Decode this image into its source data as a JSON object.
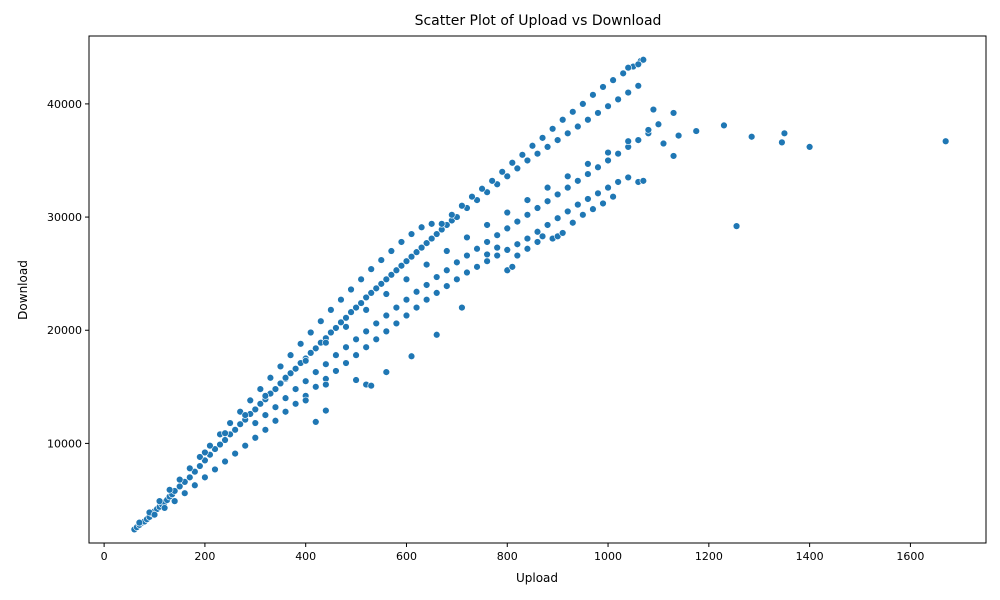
{
  "chart_data": {
    "type": "scatter",
    "title": "Scatter Plot of Upload vs Download",
    "xlabel": "Upload",
    "ylabel": "Download",
    "xlim": [
      -30,
      1750
    ],
    "ylim": [
      1200,
      46000
    ],
    "xticks": [
      0,
      200,
      400,
      600,
      800,
      1000,
      1200,
      1400,
      1600
    ],
    "yticks": [
      10000,
      20000,
      30000,
      40000
    ],
    "grid": false,
    "marker_color": "#1f77b4",
    "series": [
      {
        "points": [
          [
            60,
            2400
          ],
          [
            65,
            2600
          ],
          [
            70,
            2800
          ],
          [
            75,
            3000
          ],
          [
            80,
            3100
          ],
          [
            85,
            3300
          ],
          [
            90,
            3500
          ],
          [
            95,
            3800
          ],
          [
            100,
            4000
          ],
          [
            105,
            4200
          ],
          [
            110,
            4400
          ],
          [
            115,
            4600
          ],
          [
            120,
            4800
          ],
          [
            125,
            5000
          ],
          [
            130,
            5300
          ],
          [
            135,
            5500
          ],
          [
            140,
            5800
          ],
          [
            150,
            6200
          ],
          [
            160,
            6600
          ],
          [
            170,
            7000
          ],
          [
            180,
            7500
          ],
          [
            190,
            8000
          ],
          [
            200,
            8500
          ],
          [
            210,
            9000
          ],
          [
            220,
            9500
          ],
          [
            230,
            9900
          ],
          [
            240,
            10300
          ],
          [
            250,
            10800
          ],
          [
            260,
            11200
          ],
          [
            270,
            11700
          ],
          [
            280,
            12100
          ],
          [
            290,
            12600
          ],
          [
            300,
            13000
          ],
          [
            310,
            13500
          ],
          [
            320,
            13900
          ],
          [
            330,
            14400
          ],
          [
            340,
            14800
          ],
          [
            350,
            15300
          ],
          [
            360,
            15700
          ],
          [
            370,
            16200
          ],
          [
            380,
            16600
          ],
          [
            390,
            17100
          ],
          [
            400,
            17500
          ],
          [
            410,
            18000
          ],
          [
            420,
            18400
          ],
          [
            430,
            18900
          ],
          [
            440,
            19300
          ],
          [
            450,
            19800
          ],
          [
            460,
            20200
          ],
          [
            470,
            20700
          ],
          [
            480,
            21100
          ],
          [
            490,
            21600
          ],
          [
            500,
            22000
          ],
          [
            510,
            22400
          ],
          [
            520,
            22900
          ],
          [
            530,
            23300
          ],
          [
            540,
            23700
          ],
          [
            550,
            24100
          ],
          [
            560,
            24500
          ],
          [
            570,
            24900
          ],
          [
            580,
            25300
          ],
          [
            590,
            25700
          ],
          [
            600,
            26100
          ],
          [
            610,
            26500
          ],
          [
            620,
            26900
          ],
          [
            630,
            27300
          ],
          [
            640,
            27700
          ],
          [
            650,
            28100
          ],
          [
            660,
            28500
          ],
          [
            670,
            28900
          ],
          [
            680,
            29300
          ],
          [
            690,
            29700
          ],
          [
            700,
            30000
          ],
          [
            720,
            30800
          ],
          [
            740,
            31500
          ],
          [
            760,
            32200
          ],
          [
            780,
            32900
          ],
          [
            800,
            33600
          ],
          [
            820,
            34300
          ],
          [
            840,
            35000
          ],
          [
            860,
            35600
          ],
          [
            880,
            36200
          ],
          [
            900,
            36800
          ],
          [
            920,
            37400
          ],
          [
            940,
            38000
          ],
          [
            960,
            38600
          ],
          [
            980,
            39200
          ],
          [
            1000,
            39800
          ],
          [
            1020,
            40400
          ],
          [
            1040,
            41000
          ],
          [
            1060,
            41600
          ],
          [
            70,
            3000
          ],
          [
            90,
            3900
          ],
          [
            110,
            4900
          ],
          [
            130,
            5900
          ],
          [
            150,
            6800
          ],
          [
            170,
            7800
          ],
          [
            190,
            8800
          ],
          [
            210,
            9800
          ],
          [
            230,
            10800
          ],
          [
            250,
            11800
          ],
          [
            270,
            12800
          ],
          [
            290,
            13800
          ],
          [
            310,
            14800
          ],
          [
            330,
            15800
          ],
          [
            350,
            16800
          ],
          [
            370,
            17800
          ],
          [
            390,
            18800
          ],
          [
            410,
            19800
          ],
          [
            430,
            20800
          ],
          [
            450,
            21800
          ],
          [
            470,
            22700
          ],
          [
            490,
            23600
          ],
          [
            510,
            24500
          ],
          [
            530,
            25400
          ],
          [
            550,
            26200
          ],
          [
            570,
            27000
          ],
          [
            590,
            27800
          ],
          [
            610,
            28500
          ],
          [
            630,
            29100
          ],
          [
            650,
            29400
          ],
          [
            670,
            29400
          ],
          [
            690,
            30200
          ],
          [
            710,
            31000
          ],
          [
            730,
            31800
          ],
          [
            750,
            32500
          ],
          [
            770,
            33200
          ],
          [
            790,
            34000
          ],
          [
            810,
            34800
          ],
          [
            830,
            35500
          ],
          [
            850,
            36300
          ],
          [
            870,
            37000
          ],
          [
            890,
            37800
          ],
          [
            910,
            38600
          ],
          [
            930,
            39300
          ],
          [
            950,
            40000
          ],
          [
            970,
            40800
          ],
          [
            990,
            41500
          ],
          [
            1010,
            42100
          ],
          [
            1030,
            42700
          ],
          [
            1050,
            43300
          ],
          [
            1065,
            43800
          ],
          [
            1070,
            43900
          ],
          [
            1040,
            43200
          ],
          [
            1060,
            43500
          ],
          [
            100,
            3700
          ],
          [
            120,
            4300
          ],
          [
            140,
            4900
          ],
          [
            160,
            5600
          ],
          [
            180,
            6300
          ],
          [
            200,
            7000
          ],
          [
            220,
            7700
          ],
          [
            240,
            8400
          ],
          [
            260,
            9100
          ],
          [
            280,
            9800
          ],
          [
            300,
            10500
          ],
          [
            320,
            11200
          ],
          [
            340,
            12000
          ],
          [
            360,
            12800
          ],
          [
            380,
            13500
          ],
          [
            400,
            14200
          ],
          [
            420,
            15000
          ],
          [
            440,
            15700
          ],
          [
            460,
            16400
          ],
          [
            480,
            17100
          ],
          [
            500,
            17800
          ],
          [
            520,
            18500
          ],
          [
            540,
            19200
          ],
          [
            560,
            19900
          ],
          [
            580,
            20600
          ],
          [
            600,
            21300
          ],
          [
            620,
            22000
          ],
          [
            640,
            22700
          ],
          [
            660,
            23300
          ],
          [
            680,
            23900
          ],
          [
            700,
            24500
          ],
          [
            720,
            25100
          ],
          [
            740,
            25600
          ],
          [
            760,
            26100
          ],
          [
            780,
            26600
          ],
          [
            800,
            27100
          ],
          [
            820,
            27600
          ],
          [
            840,
            28100
          ],
          [
            860,
            28700
          ],
          [
            880,
            29300
          ],
          [
            900,
            29900
          ],
          [
            920,
            30500
          ],
          [
            940,
            31100
          ],
          [
            960,
            31600
          ],
          [
            980,
            32100
          ],
          [
            1000,
            32600
          ],
          [
            1020,
            33100
          ],
          [
            1040,
            33500
          ],
          [
            1060,
            33100
          ],
          [
            1070,
            33200
          ],
          [
            300,
            11800
          ],
          [
            320,
            12500
          ],
          [
            340,
            13200
          ],
          [
            360,
            14000
          ],
          [
            380,
            14800
          ],
          [
            400,
            15500
          ],
          [
            420,
            16300
          ],
          [
            440,
            17000
          ],
          [
            460,
            17800
          ],
          [
            480,
            18500
          ],
          [
            500,
            19200
          ],
          [
            520,
            19900
          ],
          [
            540,
            20600
          ],
          [
            560,
            21300
          ],
          [
            580,
            22000
          ],
          [
            600,
            22700
          ],
          [
            620,
            23400
          ],
          [
            640,
            24000
          ],
          [
            660,
            24700
          ],
          [
            680,
            25300
          ],
          [
            700,
            26000
          ],
          [
            720,
            26600
          ],
          [
            740,
            27200
          ],
          [
            760,
            27800
          ],
          [
            780,
            28400
          ],
          [
            800,
            29000
          ],
          [
            820,
            29600
          ],
          [
            840,
            30200
          ],
          [
            860,
            30800
          ],
          [
            880,
            31400
          ],
          [
            900,
            32000
          ],
          [
            920,
            32600
          ],
          [
            940,
            33200
          ],
          [
            960,
            33800
          ],
          [
            980,
            34400
          ],
          [
            1000,
            35000
          ],
          [
            1020,
            35600
          ],
          [
            1040,
            36200
          ],
          [
            1060,
            36800
          ],
          [
            1080,
            37400
          ],
          [
            200,
            9200
          ],
          [
            240,
            10900
          ],
          [
            280,
            12500
          ],
          [
            320,
            14200
          ],
          [
            360,
            15800
          ],
          [
            400,
            17300
          ],
          [
            440,
            18900
          ],
          [
            480,
            20300
          ],
          [
            520,
            21800
          ],
          [
            560,
            23200
          ],
          [
            600,
            24500
          ],
          [
            640,
            25800
          ],
          [
            680,
            27000
          ],
          [
            720,
            28200
          ],
          [
            760,
            29300
          ],
          [
            800,
            30400
          ],
          [
            840,
            31500
          ],
          [
            880,
            32600
          ],
          [
            920,
            33600
          ],
          [
            960,
            34700
          ],
          [
            1000,
            35700
          ],
          [
            1040,
            36700
          ],
          [
            1080,
            37700
          ],
          [
            1100,
            38200
          ],
          [
            760,
            26700
          ],
          [
            780,
            27300
          ],
          [
            800,
            25300
          ],
          [
            810,
            25600
          ],
          [
            820,
            26600
          ],
          [
            840,
            27200
          ],
          [
            860,
            27800
          ],
          [
            870,
            28300
          ],
          [
            890,
            28100
          ],
          [
            900,
            28300
          ],
          [
            910,
            28600
          ],
          [
            930,
            29500
          ],
          [
            950,
            30200
          ],
          [
            970,
            30700
          ],
          [
            990,
            31200
          ],
          [
            1010,
            31800
          ],
          [
            400,
            13800
          ],
          [
            420,
            11900
          ],
          [
            440,
            12900
          ],
          [
            440,
            15200
          ],
          [
            500,
            15600
          ],
          [
            520,
            15200
          ],
          [
            530,
            15100
          ],
          [
            560,
            16300
          ],
          [
            610,
            17700
          ],
          [
            660,
            19600
          ],
          [
            710,
            22000
          ],
          [
            1090,
            39500
          ],
          [
            1110,
            36500
          ],
          [
            1130,
            35400
          ],
          [
            1130,
            39200
          ],
          [
            1140,
            37200
          ],
          [
            1175,
            37600
          ],
          [
            1230,
            38100
          ],
          [
            1255,
            29200
          ],
          [
            1285,
            37100
          ],
          [
            1345,
            36600
          ],
          [
            1350,
            37400
          ],
          [
            1400,
            36200
          ],
          [
            1670,
            36700
          ]
        ]
      }
    ]
  }
}
